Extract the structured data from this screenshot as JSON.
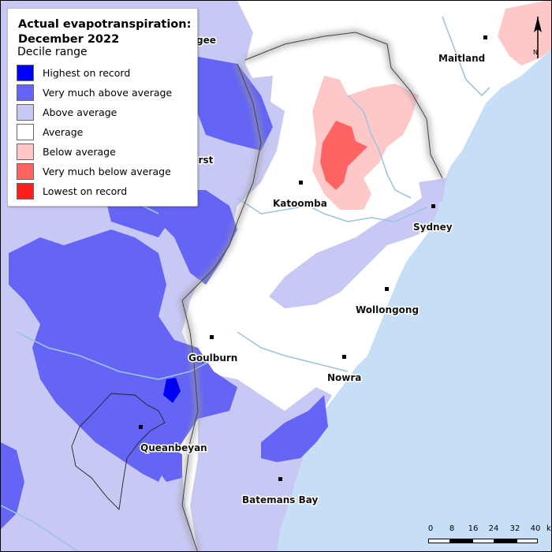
{
  "legend": {
    "title": "Actual evapotranspiration: December 2022",
    "subtitle": "Decile range",
    "items": [
      {
        "label": "Highest on record",
        "color": "#0000f5"
      },
      {
        "label": "Very much above average",
        "color": "#6464f5"
      },
      {
        "label": "Above average",
        "color": "#c8c8f5"
      },
      {
        "label": "Average",
        "color": "#ffffff"
      },
      {
        "label": "Below average",
        "color": "#ffc8c8"
      },
      {
        "label": "Very much below average",
        "color": "#ff6464"
      },
      {
        "label": "Lowest on record",
        "color": "#ff1e1e"
      }
    ]
  },
  "towns": [
    {
      "name": "Maitland"
    },
    {
      "name": "Katoomba"
    },
    {
      "name": "Sydney"
    },
    {
      "name": "Wollongong"
    },
    {
      "name": "Goulburn"
    },
    {
      "name": "Nowra"
    },
    {
      "name": "Queanbeyan"
    },
    {
      "name": "Batemans Bay"
    }
  ],
  "partial_labels": {
    "mudgee_fragment": "gee",
    "bathurst_fragment": "urst"
  },
  "scale_bar": {
    "ticks": [
      "0",
      "8",
      "16",
      "24",
      "32",
      "40"
    ],
    "unit": "km"
  },
  "north_label": "N",
  "colors": {
    "ocean": "#c6dff7",
    "rivers": "#9fc4e0",
    "land": "#ffffff"
  }
}
